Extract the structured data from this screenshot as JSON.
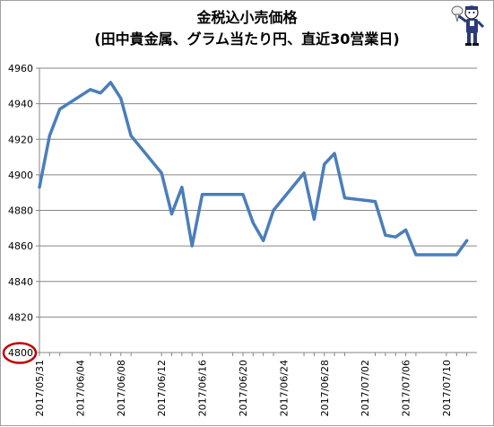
{
  "chart_data": {
    "type": "line",
    "title_lines": [
      "金税込小売価格",
      "(田中貴金属、グラム当たり円、直近30営業日)"
    ],
    "xlabel": "",
    "ylabel": "",
    "ylim": [
      4800,
      4960
    ],
    "yticks": [
      4800,
      4820,
      4840,
      4860,
      4880,
      4900,
      4920,
      4940,
      4960
    ],
    "xlim": [
      "2017/05/31",
      "2017/07/13"
    ],
    "xtick_labels": [
      "2017/05/31",
      "2017/06/04",
      "2017/06/08",
      "2017/06/12",
      "2017/06/16",
      "2017/06/20",
      "2017/06/24",
      "2017/06/28",
      "2017/07/02",
      "2017/07/06",
      "2017/07/10"
    ],
    "grid": true,
    "highlight_tick": "4800",
    "series": [
      {
        "color": "#4a7ebb",
        "points": [
          {
            "x": "2017/05/31",
            "y": 4893
          },
          {
            "x": "2017/06/01",
            "y": 4922
          },
          {
            "x": "2017/06/02",
            "y": 4937
          },
          {
            "x": "2017/06/05",
            "y": 4948
          },
          {
            "x": "2017/06/06",
            "y": 4946
          },
          {
            "x": "2017/06/07",
            "y": 4952
          },
          {
            "x": "2017/06/08",
            "y": 4943
          },
          {
            "x": "2017/06/09",
            "y": 4922
          },
          {
            "x": "2017/06/12",
            "y": 4901
          },
          {
            "x": "2017/06/13",
            "y": 4878
          },
          {
            "x": "2017/06/14",
            "y": 4893
          },
          {
            "x": "2017/06/15",
            "y": 4860
          },
          {
            "x": "2017/06/16",
            "y": 4889
          },
          {
            "x": "2017/06/19",
            "y": 4889
          },
          {
            "x": "2017/06/20",
            "y": 4889
          },
          {
            "x": "2017/06/21",
            "y": 4873
          },
          {
            "x": "2017/06/22",
            "y": 4863
          },
          {
            "x": "2017/06/23",
            "y": 4880
          },
          {
            "x": "2017/06/26",
            "y": 4901
          },
          {
            "x": "2017/06/27",
            "y": 4875
          },
          {
            "x": "2017/06/28",
            "y": 4906
          },
          {
            "x": "2017/06/29",
            "y": 4912
          },
          {
            "x": "2017/06/30",
            "y": 4887
          },
          {
            "x": "2017/07/03",
            "y": 4885
          },
          {
            "x": "2017/07/04",
            "y": 4866
          },
          {
            "x": "2017/07/05",
            "y": 4865
          },
          {
            "x": "2017/07/06",
            "y": 4869
          },
          {
            "x": "2017/07/07",
            "y": 4855
          },
          {
            "x": "2017/07/10",
            "y": 4855
          },
          {
            "x": "2017/07/11",
            "y": 4855
          },
          {
            "x": "2017/07/12",
            "y": 4863
          }
        ]
      }
    ]
  },
  "colors": {
    "series": "#4a7ebb",
    "grid": "#868686",
    "axis": "#868686",
    "highlight_ring": "#c00000"
  },
  "logo": {
    "icon": "mascot-figure-icon"
  }
}
